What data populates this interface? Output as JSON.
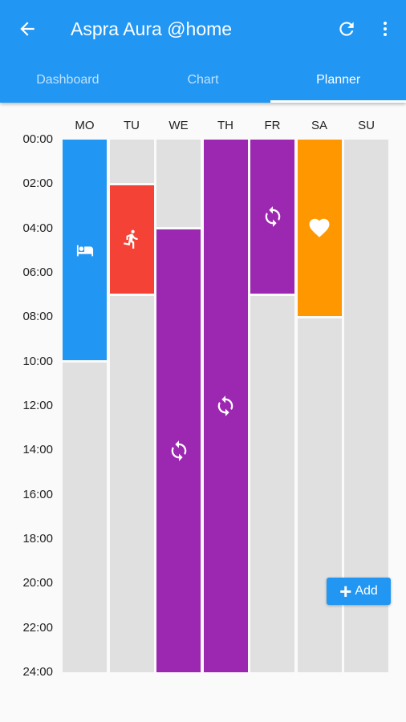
{
  "header": {
    "title": "Aspra Aura @home",
    "back_icon": "arrow-back-icon",
    "refresh_icon": "refresh-icon",
    "more_icon": "more-vert-icon",
    "bar_color": "#2196f3"
  },
  "tabs": [
    {
      "label": "Dashboard",
      "active": false
    },
    {
      "label": "Chart",
      "active": false
    },
    {
      "label": "Planner",
      "active": true
    }
  ],
  "planner": {
    "days": [
      "MO",
      "TU",
      "WE",
      "TH",
      "FR",
      "SA",
      "SU"
    ],
    "times": [
      "00:00",
      "02:00",
      "04:00",
      "06:00",
      "08:00",
      "10:00",
      "12:00",
      "14:00",
      "16:00",
      "18:00",
      "20:00",
      "22:00",
      "24:00"
    ],
    "hours_total": 24,
    "columns": [
      {
        "day": "MO",
        "segments": [
          {
            "start": 0,
            "end": 10,
            "mode": "sleep",
            "color": "#2196f3",
            "icon": "bed-icon"
          },
          {
            "start": 10,
            "end": 24,
            "mode": "none",
            "color": "#e0e0e0",
            "icon": ""
          }
        ]
      },
      {
        "day": "TU",
        "segments": [
          {
            "start": 0,
            "end": 2,
            "mode": "none",
            "color": "#e0e0e0",
            "icon": ""
          },
          {
            "start": 2,
            "end": 7,
            "mode": "boost",
            "color": "#f44336",
            "icon": "running-icon"
          },
          {
            "start": 7,
            "end": 24,
            "mode": "none",
            "color": "#e0e0e0",
            "icon": ""
          }
        ]
      },
      {
        "day": "WE",
        "segments": [
          {
            "start": 0,
            "end": 4,
            "mode": "none",
            "color": "#e0e0e0",
            "icon": ""
          },
          {
            "start": 4,
            "end": 24,
            "mode": "auto",
            "color": "#9c27b0",
            "icon": "sync-icon"
          }
        ]
      },
      {
        "day": "TH",
        "segments": [
          {
            "start": 0,
            "end": 24,
            "mode": "auto",
            "color": "#9c27b0",
            "icon": "sync-icon"
          }
        ]
      },
      {
        "day": "FR",
        "segments": [
          {
            "start": 0,
            "end": 7,
            "mode": "auto",
            "color": "#9c27b0",
            "icon": "sync-icon"
          },
          {
            "start": 7,
            "end": 24,
            "mode": "none",
            "color": "#e0e0e0",
            "icon": ""
          }
        ]
      },
      {
        "day": "SA",
        "segments": [
          {
            "start": 0,
            "end": 8,
            "mode": "favorite",
            "color": "#ff9800",
            "icon": "heart-icon"
          },
          {
            "start": 8,
            "end": 24,
            "mode": "none",
            "color": "#e0e0e0",
            "icon": ""
          }
        ]
      },
      {
        "day": "SU",
        "segments": [
          {
            "start": 0,
            "end": 24,
            "mode": "none",
            "color": "#e0e0e0",
            "icon": ""
          }
        ]
      }
    ]
  },
  "add_button": {
    "label": "Add",
    "icon": "plus-icon"
  }
}
